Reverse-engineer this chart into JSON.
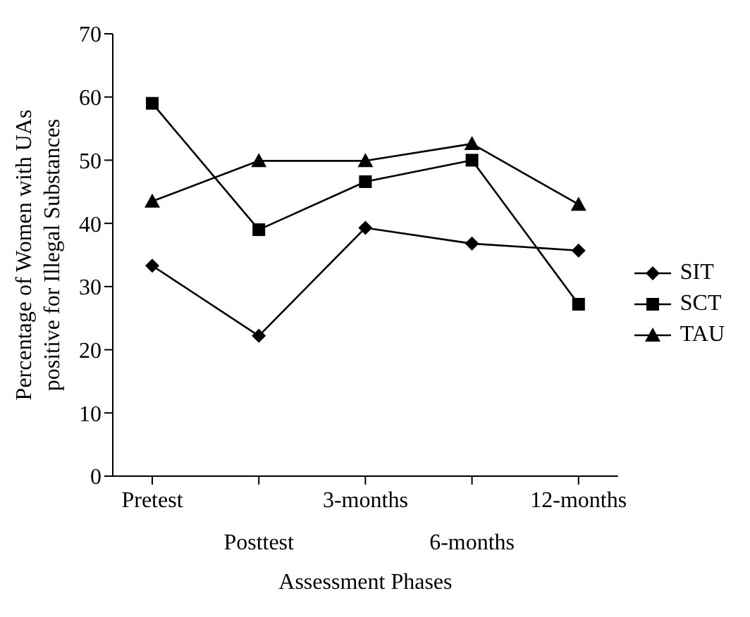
{
  "chart_data": {
    "type": "line",
    "xlabel": "Assessment Phases",
    "ylabel": "Percentage of Women with UAs positive for Illegal Substances",
    "categories": [
      "Pretest",
      "Posttest",
      "3-months",
      "6-months",
      "12-months"
    ],
    "series": [
      {
        "name": "SIT",
        "color": "#000000",
        "marker": "diamond",
        "values": [
          33.3,
          22.2,
          39.3,
          36.8,
          35.7
        ]
      },
      {
        "name": "SCT",
        "color": "#000000",
        "marker": "square",
        "values": [
          59.0,
          39.0,
          46.6,
          50.0,
          27.2
        ]
      },
      {
        "name": "TAU",
        "color": "#000000",
        "marker": "triangle",
        "values": [
          43.5,
          49.9,
          49.9,
          52.6,
          43.0
        ]
      }
    ],
    "ylim": [
      0,
      70
    ],
    "yticks": [
      0,
      10,
      20,
      30,
      40,
      50,
      60,
      70
    ],
    "grid": false,
    "legend": "right",
    "line_style": "solid"
  }
}
